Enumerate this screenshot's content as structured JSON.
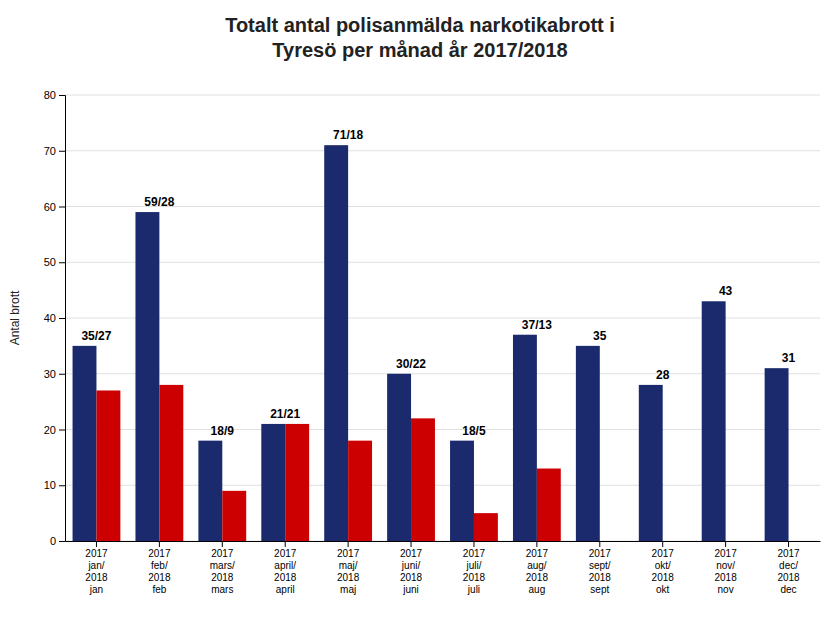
{
  "chart_data": {
    "type": "bar",
    "title": "Totalt antal polisanmälda narkotikabrott i\nTyresö per månad år 2017/2018",
    "ylabel": "Antal brott",
    "categories": [
      "2017\njan/\n2018\njan",
      "2017\nfeb/\n2018\nfeb",
      "2017\nmars/\n2018\nmars",
      "2017\napril/\n2018\napril",
      "2017\nmaj/\n2018\nmaj",
      "2017\njuni/\n2018\njuni",
      "2017\njuli/\n2018\njuli",
      "2017\naug/\n2018\naug",
      "2017\nsept/\n2018\nsept",
      "2017\nokt/\n2018\nokt",
      "2017\nnov/\n2018\nnov",
      "2017\ndec/\n2018\ndec"
    ],
    "series": [
      {
        "color": "#1a2a6c",
        "values": [
          35,
          59,
          18,
          21,
          71,
          30,
          18,
          37,
          35,
          28,
          43,
          31
        ]
      },
      {
        "color": "#cc0000",
        "values": [
          27,
          28,
          9,
          21,
          18,
          22,
          5,
          13,
          null,
          null,
          null,
          null
        ]
      }
    ],
    "annotations": [
      "35/27",
      "59/28",
      "18/9",
      "21/21",
      "71/18",
      "30/22",
      "18/5",
      "37/13",
      "35",
      "28",
      "43",
      "31"
    ],
    "ylim": [
      0,
      80
    ],
    "yticks": [
      0,
      10,
      20,
      30,
      40,
      50,
      60,
      70,
      80
    ],
    "grid": true
  }
}
